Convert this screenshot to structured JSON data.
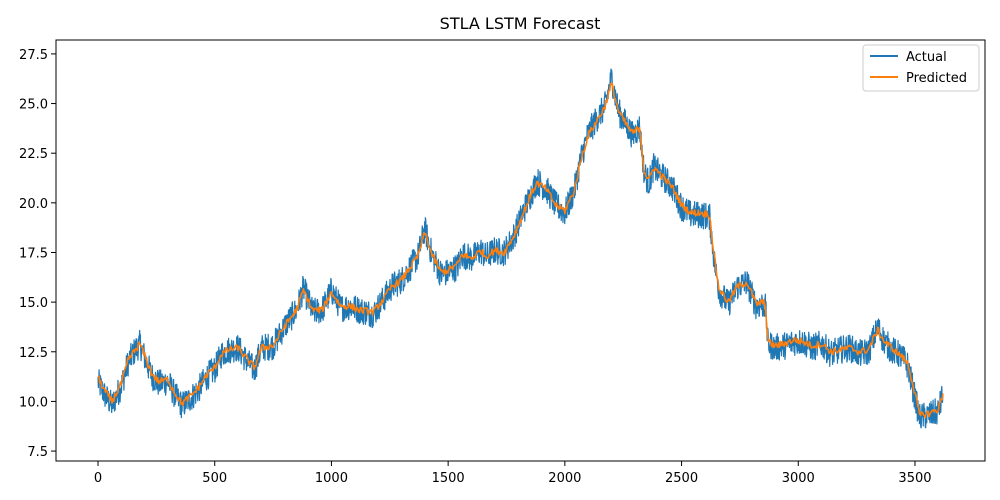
{
  "chart_data": {
    "type": "line",
    "title": "STLA LSTM Forecast",
    "xlabel": "",
    "ylabel": "",
    "xlim": [
      -180,
      3800
    ],
    "ylim": [
      7.0,
      28.2
    ],
    "xticks": [
      0,
      500,
      1000,
      1500,
      2000,
      2500,
      3000,
      3500
    ],
    "xtick_labels": [
      "0",
      "500",
      "1000",
      "1500",
      "2000",
      "2500",
      "3000",
      "3500"
    ],
    "yticks": [
      7.5,
      10.0,
      12.5,
      15.0,
      17.5,
      20.0,
      22.5,
      25.0,
      27.5
    ],
    "ytick_labels": [
      "7.5",
      "10.0",
      "12.5",
      "15.0",
      "17.5",
      "20.0",
      "22.5",
      "25.0",
      "27.5"
    ],
    "grid": false,
    "legend_position": "top-right",
    "series": [
      {
        "name": "Actual",
        "color": "#1f77b4",
        "noise_amplitude": 0.7,
        "x": [
          0,
          30,
          60,
          100,
          130,
          160,
          180,
          200,
          230,
          260,
          300,
          330,
          360,
          400,
          430,
          470,
          500,
          530,
          560,
          600,
          640,
          670,
          700,
          750,
          800,
          850,
          880,
          920,
          960,
          1000,
          1040,
          1080,
          1120,
          1180,
          1220,
          1260,
          1300,
          1340,
          1370,
          1400,
          1430,
          1470,
          1500,
          1540,
          1560,
          1600,
          1640,
          1660,
          1700,
          1740,
          1780,
          1820,
          1850,
          1880,
          1920,
          1960,
          2000,
          2040,
          2070,
          2100,
          2140,
          2170,
          2200,
          2230,
          2260,
          2290,
          2320,
          2340,
          2360,
          2380,
          2420,
          2460,
          2500,
          2540,
          2580,
          2620,
          2640,
          2660,
          2700,
          2740,
          2780,
          2820,
          2850,
          2860,
          2870,
          2900,
          2940,
          2980,
          3020,
          3060,
          3100,
          3140,
          3180,
          3220,
          3260,
          3300,
          3340,
          3370,
          3400,
          3440,
          3470,
          3490,
          3500,
          3520,
          3560,
          3600,
          3620
        ],
        "y": [
          11.0,
          10.3,
          9.8,
          10.8,
          12.0,
          12.6,
          12.9,
          12.2,
          11.3,
          10.9,
          11.0,
          10.3,
          9.8,
          10.2,
          10.6,
          11.3,
          11.6,
          12.4,
          12.6,
          12.7,
          12.0,
          11.6,
          12.7,
          12.8,
          13.8,
          14.6,
          15.7,
          14.5,
          14.6,
          15.6,
          14.7,
          14.8,
          14.6,
          14.4,
          15.1,
          15.8,
          16.1,
          16.8,
          17.3,
          18.7,
          17.4,
          16.4,
          16.5,
          16.8,
          17.4,
          17.2,
          17.6,
          17.3,
          17.6,
          17.5,
          18.3,
          19.5,
          20.3,
          21.1,
          20.7,
          19.9,
          19.5,
          20.6,
          22.3,
          23.5,
          24.3,
          24.8,
          26.3,
          24.6,
          24.0,
          23.4,
          23.8,
          21.5,
          21.0,
          21.8,
          21.3,
          20.8,
          19.8,
          19.4,
          19.4,
          19.3,
          17.1,
          15.6,
          14.9,
          15.8,
          16.0,
          14.8,
          14.9,
          14.7,
          12.9,
          12.7,
          12.8,
          13.0,
          13.0,
          12.7,
          12.9,
          12.4,
          12.6,
          12.7,
          12.4,
          12.5,
          13.7,
          13.0,
          12.6,
          12.3,
          11.8,
          10.7,
          10.2,
          9.2,
          9.3,
          9.5,
          10.4
        ]
      },
      {
        "name": "Predicted",
        "color": "#ff7f0e",
        "x": [
          0,
          30,
          60,
          100,
          130,
          160,
          180,
          200,
          230,
          260,
          300,
          330,
          360,
          400,
          430,
          470,
          500,
          530,
          560,
          600,
          640,
          670,
          700,
          750,
          800,
          850,
          880,
          920,
          960,
          1000,
          1040,
          1080,
          1120,
          1180,
          1220,
          1260,
          1300,
          1340,
          1370,
          1400,
          1430,
          1470,
          1500,
          1540,
          1560,
          1600,
          1640,
          1660,
          1700,
          1740,
          1780,
          1820,
          1850,
          1880,
          1920,
          1960,
          2000,
          2040,
          2070,
          2100,
          2140,
          2170,
          2200,
          2230,
          2260,
          2290,
          2320,
          2340,
          2360,
          2380,
          2420,
          2460,
          2500,
          2540,
          2580,
          2620,
          2640,
          2660,
          2700,
          2740,
          2780,
          2820,
          2850,
          2860,
          2870,
          2900,
          2940,
          2980,
          3020,
          3060,
          3100,
          3140,
          3180,
          3220,
          3260,
          3300,
          3340,
          3370,
          3400,
          3440,
          3470,
          3490,
          3500,
          3520,
          3560,
          3600,
          3620
        ],
        "y": [
          11.2,
          10.5,
          10.0,
          10.9,
          12.1,
          12.6,
          12.9,
          12.3,
          11.4,
          11.0,
          11.1,
          10.4,
          9.9,
          10.3,
          10.7,
          11.4,
          11.7,
          12.4,
          12.6,
          12.7,
          12.1,
          11.7,
          12.7,
          12.8,
          13.8,
          14.6,
          15.6,
          14.6,
          14.6,
          15.5,
          14.8,
          14.8,
          14.6,
          14.5,
          15.1,
          15.8,
          16.1,
          16.8,
          17.3,
          18.5,
          17.4,
          16.5,
          16.6,
          16.9,
          17.4,
          17.2,
          17.6,
          17.3,
          17.6,
          17.5,
          18.3,
          19.4,
          20.3,
          21.0,
          20.7,
          19.9,
          19.6,
          20.6,
          22.2,
          23.4,
          24.2,
          24.8,
          26.0,
          24.6,
          24.0,
          23.5,
          23.8,
          21.6,
          21.1,
          21.8,
          21.3,
          20.8,
          19.9,
          19.5,
          19.5,
          19.4,
          17.3,
          15.7,
          15.0,
          15.8,
          16.0,
          14.9,
          15.0,
          14.8,
          13.0,
          12.8,
          12.9,
          13.1,
          13.0,
          12.8,
          12.9,
          12.5,
          12.6,
          12.7,
          12.5,
          12.6,
          13.6,
          13.0,
          12.7,
          12.3,
          11.9,
          10.9,
          10.4,
          9.3,
          9.4,
          9.6,
          10.4
        ]
      }
    ]
  }
}
